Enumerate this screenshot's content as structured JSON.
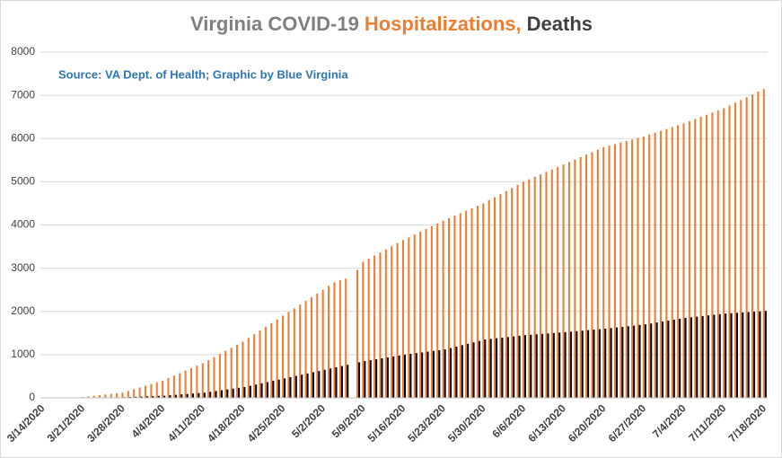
{
  "chart_data": {
    "type": "bar",
    "title_parts": [
      {
        "text": "Virginia COVID-19",
        "color": "#7f7f7f"
      },
      {
        "text": "Hospitalizations,",
        "color": "#ed7d31"
      },
      {
        "text": "Deaths",
        "color": "#404040"
      }
    ],
    "annotation": "Source: VA Dept. of Health; Graphic by Blue Virginia",
    "categories": [
      "3/14/2020",
      null,
      null,
      null,
      null,
      null,
      null,
      "3/21/2020",
      null,
      null,
      null,
      null,
      null,
      null,
      "3/28/2020",
      null,
      null,
      null,
      null,
      null,
      null,
      "4/4/2020",
      null,
      null,
      null,
      null,
      null,
      null,
      "4/11/2020",
      null,
      null,
      null,
      null,
      null,
      null,
      "4/18/2020",
      null,
      null,
      null,
      null,
      null,
      null,
      "4/25/2020",
      null,
      null,
      null,
      null,
      null,
      null,
      "5/2/2020",
      null,
      null,
      null,
      null,
      null,
      null,
      "5/9/2020",
      null,
      null,
      null,
      null,
      null,
      null,
      "5/16/2020",
      null,
      null,
      null,
      null,
      null,
      null,
      "5/23/2020",
      null,
      null,
      null,
      null,
      null,
      null,
      "5/30/2020",
      null,
      null,
      null,
      null,
      null,
      null,
      "6/6/2020",
      null,
      null,
      null,
      null,
      null,
      null,
      "6/13/2020",
      null,
      null,
      null,
      null,
      null,
      null,
      "6/20/2020",
      null,
      null,
      null,
      null,
      null,
      null,
      "6/27/2020",
      null,
      null,
      null,
      null,
      null,
      null,
      "7/4/2020",
      null,
      null,
      null,
      null,
      null,
      null,
      "7/11/2020",
      null,
      null,
      null,
      null,
      null,
      null,
      "7/18/2020"
    ],
    "series": [
      {
        "color": "#ed7d31",
        "values": [
          null,
          null,
          null,
          null,
          null,
          null,
          null,
          20,
          34,
          48,
          63,
          77,
          91,
          106,
          120,
          160,
          200,
          240,
          280,
          320,
          360,
          400,
          457,
          514,
          571,
          629,
          686,
          743,
          800,
          871,
          943,
          1014,
          1086,
          1157,
          1229,
          1300,
          1386,
          1471,
          1557,
          1643,
          1729,
          1814,
          1900,
          1986,
          2071,
          2157,
          2243,
          2329,
          2414,
          2500,
          2590,
          2670,
          2720,
          2760,
          null,
          2960,
          3150,
          3221,
          3293,
          3364,
          3436,
          3507,
          3579,
          3650,
          3714,
          3779,
          3843,
          3907,
          3971,
          4036,
          4100,
          4157,
          4214,
          4271,
          4329,
          4386,
          4443,
          4500,
          4571,
          4643,
          4714,
          4786,
          4857,
          4929,
          5000,
          5057,
          5114,
          5171,
          5229,
          5286,
          5343,
          5400,
          5457,
          5514,
          5571,
          5629,
          5686,
          5743,
          5800,
          5836,
          5871,
          5907,
          5943,
          5979,
          6014,
          6050,
          6093,
          6136,
          6179,
          6221,
          6264,
          6307,
          6350,
          6400,
          6450,
          6500,
          6550,
          6600,
          6650,
          6700,
          6764,
          6829,
          6893,
          6957,
          7021,
          7086,
          7150
        ]
      },
      {
        "color": "#000000",
        "values": [
          null,
          null,
          null,
          null,
          null,
          null,
          null,
          2,
          3,
          5,
          7,
          9,
          10,
          12,
          14,
          19,
          24,
          29,
          35,
          40,
          45,
          50,
          60,
          70,
          80,
          90,
          100,
          110,
          120,
          139,
          157,
          176,
          194,
          213,
          231,
          250,
          279,
          307,
          336,
          364,
          393,
          421,
          450,
          479,
          507,
          536,
          564,
          593,
          621,
          650,
          679,
          707,
          736,
          764,
          null,
          821,
          850,
          871,
          893,
          914,
          936,
          957,
          979,
          1000,
          1017,
          1034,
          1051,
          1069,
          1086,
          1103,
          1120,
          1153,
          1186,
          1219,
          1251,
          1284,
          1317,
          1350,
          1364,
          1379,
          1393,
          1407,
          1421,
          1436,
          1450,
          1460,
          1470,
          1480,
          1490,
          1500,
          1510,
          1520,
          1531,
          1543,
          1554,
          1566,
          1577,
          1589,
          1600,
          1614,
          1629,
          1643,
          1657,
          1671,
          1686,
          1700,
          1721,
          1743,
          1764,
          1786,
          1807,
          1829,
          1850,
          1864,
          1879,
          1893,
          1907,
          1921,
          1936,
          1950,
          1959,
          1967,
          1976,
          1984,
          1993,
          2001,
          2010
        ]
      }
    ],
    "ylim": [
      0,
      8000
    ],
    "yticks": [
      0,
      1000,
      2000,
      3000,
      4000,
      5000,
      6000,
      7000,
      8000
    ],
    "grid": true
  }
}
